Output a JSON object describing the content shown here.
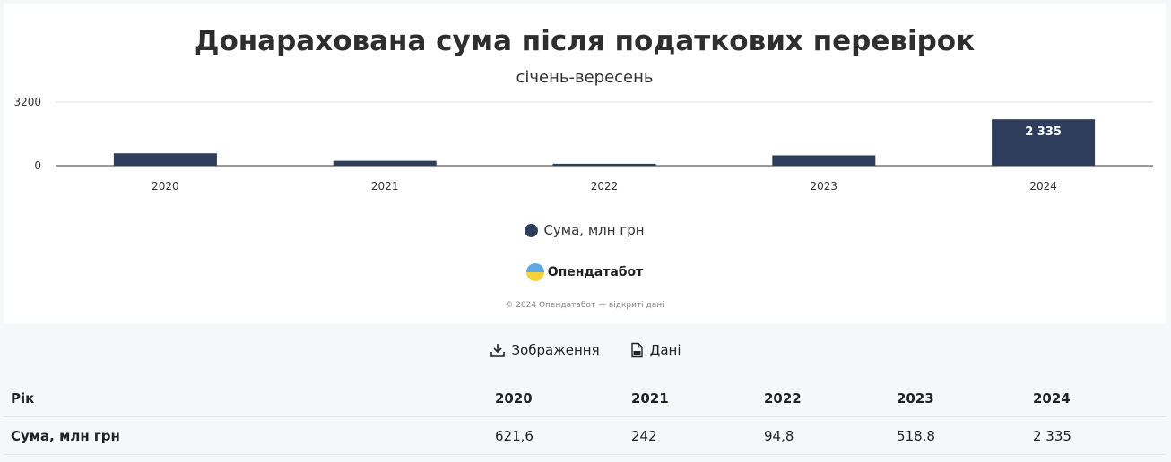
{
  "chart_data": {
    "type": "bar",
    "title": "Донарахована сума після податкових перевірок",
    "subtitle": "січень-вересень",
    "categories": [
      "2020",
      "2021",
      "2022",
      "2023",
      "2024"
    ],
    "series": [
      {
        "name": "Сума, млн грн",
        "values": [
          621.6,
          242,
          94.8,
          518.8,
          2335
        ]
      }
    ],
    "data_labels": {
      "2024": "2 335"
    },
    "y_ticks": [
      "0",
      "3200"
    ],
    "ylim": [
      0,
      3200
    ],
    "legend_position": "bottom",
    "color": "#2f3d5c"
  },
  "branding": {
    "name": "Опендатабот",
    "copyright": "© 2024 Опендатабот — відкриті дані"
  },
  "toolbar": {
    "image_label": "Зображення",
    "data_label": "Дані"
  },
  "table": {
    "headers": [
      "Рік",
      "2020",
      "2021",
      "2022",
      "2023",
      "2024"
    ],
    "rows": [
      [
        "Сума, млн грн",
        "621,6",
        "242",
        "94,8",
        "518,8",
        "2 335"
      ]
    ]
  }
}
